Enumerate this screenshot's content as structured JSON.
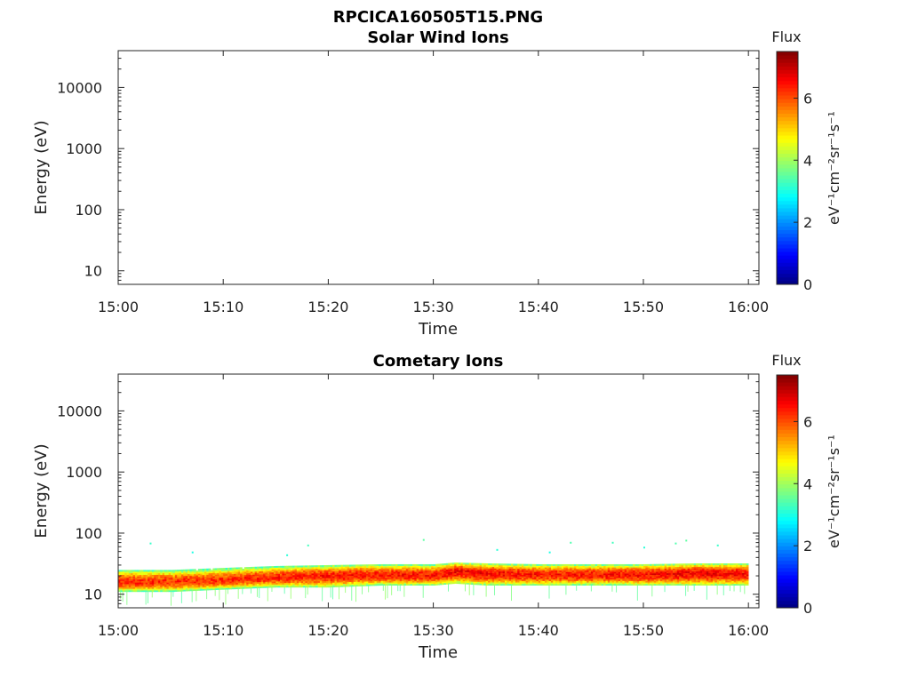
{
  "figure": {
    "filename_title": "RPCICA160505T15.PNG"
  },
  "chart_data": [
    {
      "type": "heatmap",
      "title": "Solar Wind Ions",
      "xlabel": "Time",
      "ylabel": "Energy (eV)",
      "x_ticks": [
        "15:00",
        "15:10",
        "15:20",
        "15:30",
        "15:40",
        "15:50",
        "16:00"
      ],
      "xlim": [
        "15:00",
        "16:01"
      ],
      "y_scale": "log",
      "y_ticks": [
        10,
        100,
        1000,
        10000
      ],
      "y_tick_labels": [
        "10",
        "100",
        "1000",
        "10000"
      ],
      "ylim": [
        6,
        40000
      ],
      "colorbar": {
        "title": "Flux",
        "label": "eV⁻¹cm⁻²sr⁻¹s⁻¹",
        "ticks": [
          0,
          2,
          4,
          6
        ],
        "tick_labels": [
          "0",
          "2",
          "4",
          "6"
        ],
        "range": [
          0,
          7.5
        ],
        "colormap": "jet"
      },
      "bands": []
    },
    {
      "type": "heatmap",
      "title": "Cometary Ions",
      "xlabel": "Time",
      "ylabel": "Energy (eV)",
      "x_ticks": [
        "15:00",
        "15:10",
        "15:20",
        "15:30",
        "15:40",
        "15:50",
        "16:00"
      ],
      "xlim": [
        "15:00",
        "16:01"
      ],
      "y_scale": "log",
      "y_ticks": [
        10,
        100,
        1000,
        10000
      ],
      "y_tick_labels": [
        "10",
        "100",
        "1000",
        "10000"
      ],
      "ylim": [
        6,
        40000
      ],
      "colorbar": {
        "title": "Flux",
        "label": "eV⁻¹cm⁻²sr⁻¹s⁻¹",
        "ticks": [
          0,
          2,
          4,
          6
        ],
        "tick_labels": [
          "0",
          "2",
          "4",
          "6"
        ],
        "range": [
          0,
          7.5
        ],
        "colormap": "jet"
      },
      "bands": [
        {
          "time": "15:00",
          "energy_low": 11,
          "energy_high": 25,
          "peak_energy": 16,
          "peak_flux": 6.3
        },
        {
          "time": "15:05",
          "energy_low": 11,
          "energy_high": 25,
          "peak_energy": 16,
          "peak_flux": 6.2
        },
        {
          "time": "15:10",
          "energy_low": 12,
          "energy_high": 27,
          "peak_energy": 17,
          "peak_flux": 6.2
        },
        {
          "time": "15:15",
          "energy_low": 13,
          "energy_high": 29,
          "peak_energy": 19,
          "peak_flux": 6.3
        },
        {
          "time": "15:20",
          "energy_low": 13,
          "energy_high": 30,
          "peak_energy": 20,
          "peak_flux": 6.4
        },
        {
          "time": "15:25",
          "energy_low": 14,
          "energy_high": 31,
          "peak_energy": 21,
          "peak_flux": 6.4
        },
        {
          "time": "15:30",
          "energy_low": 14,
          "energy_high": 31,
          "peak_energy": 20,
          "peak_flux": 6.4
        },
        {
          "time": "15:32",
          "energy_low": 15,
          "energy_high": 33,
          "peak_energy": 24,
          "peak_flux": 6.6
        },
        {
          "time": "15:35",
          "energy_low": 14,
          "energy_high": 32,
          "peak_energy": 22,
          "peak_flux": 6.5
        },
        {
          "time": "15:40",
          "energy_low": 14,
          "energy_high": 31,
          "peak_energy": 21,
          "peak_flux": 6.4
        },
        {
          "time": "15:45",
          "energy_low": 14,
          "energy_high": 31,
          "peak_energy": 21,
          "peak_flux": 6.4
        },
        {
          "time": "15:50",
          "energy_low": 14,
          "energy_high": 31,
          "peak_energy": 21,
          "peak_flux": 6.5
        },
        {
          "time": "15:55",
          "energy_low": 14,
          "energy_high": 32,
          "peak_energy": 22,
          "peak_flux": 6.6
        },
        {
          "time": "16:00",
          "energy_low": 14,
          "energy_high": 32,
          "peak_energy": 22,
          "peak_flux": 6.5
        }
      ],
      "sparse_points": [
        {
          "time": "15:03",
          "energy": 70,
          "flux": 3.2
        },
        {
          "time": "15:07",
          "energy": 50,
          "flux": 3.0
        },
        {
          "time": "15:16",
          "energy": 45,
          "flux": 3.1
        },
        {
          "time": "15:18",
          "energy": 65,
          "flux": 3.3
        },
        {
          "time": "15:29",
          "energy": 80,
          "flux": 3.5
        },
        {
          "time": "15:36",
          "energy": 55,
          "flux": 3.1
        },
        {
          "time": "15:41",
          "energy": 50,
          "flux": 3.0
        },
        {
          "time": "15:43",
          "energy": 72,
          "flux": 3.4
        },
        {
          "time": "15:47",
          "energy": 72,
          "flux": 3.3
        },
        {
          "time": "15:50",
          "energy": 60,
          "flux": 3.1
        },
        {
          "time": "15:53",
          "energy": 70,
          "flux": 3.4
        },
        {
          "time": "15:54",
          "energy": 78,
          "flux": 3.5
        },
        {
          "time": "15:57",
          "energy": 65,
          "flux": 3.2
        }
      ]
    }
  ]
}
